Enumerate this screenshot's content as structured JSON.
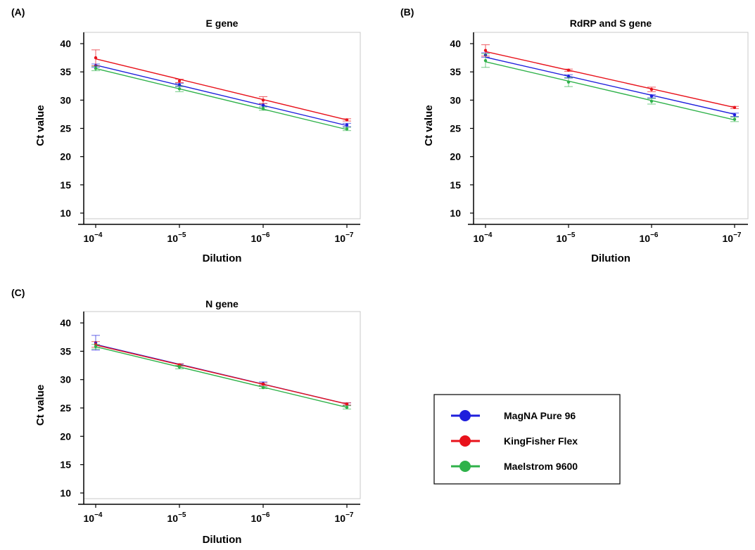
{
  "colors": {
    "magna": "#1f1fdc",
    "kingfisher": "#e8121b",
    "maelstrom": "#2fb24a"
  },
  "legend": [
    {
      "label": "MagNA Pure 96",
      "color": "#1f1fdc"
    },
    {
      "label": "KingFisher Flex",
      "color": "#e8121b"
    },
    {
      "label": "Maelstrom 9600",
      "color": "#2fb24a"
    }
  ],
  "chart_data": [
    {
      "type": "line",
      "panel": "(A)",
      "title": "E gene",
      "xlabel": "Dilution",
      "ylabel": "Ct value",
      "x_ticks": [
        "10",
        "10",
        "10",
        "10"
      ],
      "x_exponents": [
        "−4",
        "−5",
        "−6",
        "−7"
      ],
      "y_ticks": [
        "10",
        "15",
        "20",
        "25",
        "30",
        "35",
        "40"
      ],
      "ylim": [
        9,
        42
      ],
      "series": [
        {
          "name": "MagNA Pure 96",
          "values": [
            36.1,
            32.7,
            29.1,
            25.6
          ],
          "errors": [
            0.3,
            0.3,
            0.3,
            0.3
          ],
          "fit": [
            36.2,
            25.5
          ]
        },
        {
          "name": "KingFisher Flex",
          "values": [
            37.5,
            33.4,
            30.0,
            26.5
          ],
          "errors": [
            1.4,
            0.3,
            0.6,
            0.2
          ],
          "fit": [
            37.3,
            26.5
          ]
        },
        {
          "name": "Maelstrom 9600",
          "values": [
            35.6,
            32.0,
            28.5,
            24.9
          ],
          "errors": [
            0.4,
            0.5,
            0.3,
            0.3
          ],
          "fit": [
            35.6,
            24.8
          ]
        }
      ]
    },
    {
      "type": "line",
      "panel": "(B)",
      "title": "RdRP and S gene",
      "xlabel": "Dilution",
      "ylabel": "Ct value",
      "x_ticks": [
        "10",
        "10",
        "10",
        "10"
      ],
      "x_exponents": [
        "−4",
        "−5",
        "−6",
        "−7"
      ],
      "y_ticks": [
        "10",
        "15",
        "20",
        "25",
        "30",
        "35",
        "40"
      ],
      "ylim": [
        9,
        42
      ],
      "series": [
        {
          "name": "MagNA Pure 96",
          "values": [
            38.0,
            34.2,
            30.7,
            27.4
          ],
          "errors": [
            0.4,
            0.3,
            0.3,
            0.3
          ],
          "fit": [
            37.6,
            27.5
          ]
        },
        {
          "name": "KingFisher Flex",
          "values": [
            38.8,
            35.3,
            31.9,
            28.7
          ],
          "errors": [
            1.0,
            0.2,
            0.4,
            0.2
          ],
          "fit": [
            38.6,
            28.7
          ]
        },
        {
          "name": "Maelstrom 9600",
          "values": [
            37.0,
            33.2,
            29.8,
            26.6
          ],
          "errors": [
            1.2,
            0.8,
            0.5,
            0.4
          ],
          "fit": [
            36.8,
            26.5
          ]
        }
      ]
    },
    {
      "type": "line",
      "panel": "(C)",
      "title": "N gene",
      "xlabel": "Dilution",
      "ylabel": "Ct value",
      "x_ticks": [
        "10",
        "10",
        "10",
        "10"
      ],
      "x_exponents": [
        "−4",
        "−5",
        "−6",
        "−7"
      ],
      "y_ticks": [
        "10",
        "15",
        "20",
        "25",
        "30",
        "35",
        "40"
      ],
      "ylim": [
        9,
        42
      ],
      "series": [
        {
          "name": "MagNA Pure 96",
          "values": [
            36.5,
            32.6,
            29.3,
            25.7
          ],
          "errors": [
            1.3,
            0.2,
            0.3,
            0.2
          ],
          "fit": [
            36.2,
            25.7
          ]
        },
        {
          "name": "KingFisher Flex",
          "values": [
            36.2,
            32.6,
            29.2,
            25.7
          ],
          "errors": [
            0.5,
            0.2,
            0.2,
            0.2
          ],
          "fit": [
            36.1,
            25.7
          ]
        },
        {
          "name": "Maelstrom 9600",
          "values": [
            35.8,
            32.2,
            28.6,
            25.1
          ],
          "errors": [
            0.4,
            0.3,
            0.2,
            0.3
          ],
          "fit": [
            35.8,
            25.1
          ]
        }
      ]
    }
  ]
}
